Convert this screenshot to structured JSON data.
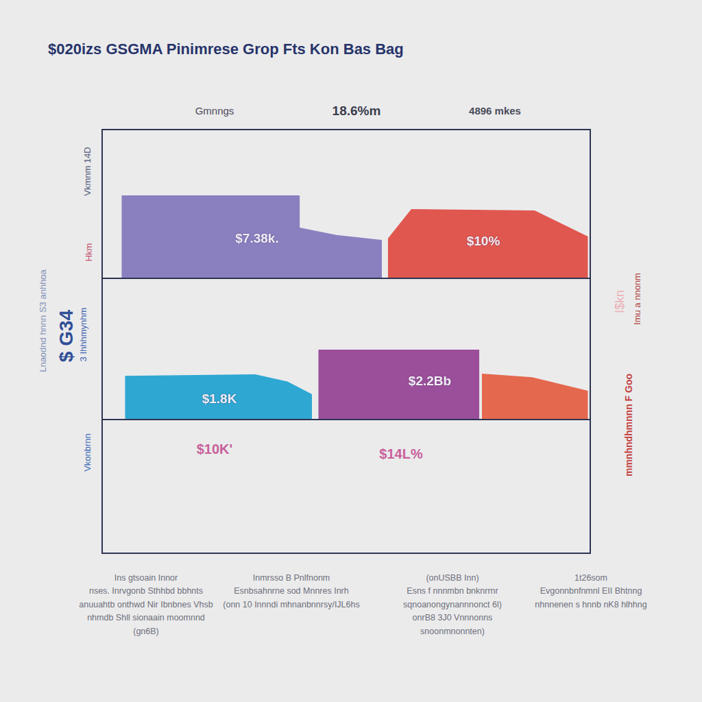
{
  "title": "$020izs GSGMA Pinimrese Grop Fts Kon Bas Bag",
  "header_labels": [
    "Gmnngs",
    "18.6%m",
    "4896 mkes"
  ],
  "side_labels": {
    "left": [
      "Vkmnm 14D",
      "Hkm",
      "Lnaodnd hnnn S3 anhhoa",
      "$ G34",
      "3 Ihhhmynhm",
      "Vkonbrnn"
    ],
    "right": [
      "I$kn",
      "Imu a nnonm",
      "mmnhndhmnnn F Goo"
    ]
  },
  "annotations": [
    "$10K'",
    "$14L%"
  ],
  "footer_notes": [
    [
      "Ins gtsoain Innor",
      "nses. Inrvgonb Sthhbd bbhnts",
      "anuuahtb onthwd Nir Ibnbnes Vhsb",
      "nhmdb Shll sionaain moomnnd",
      "(gn6B)"
    ],
    [
      "Inmrsso B Pnlfnonm",
      "Esnbsahnrne sod Mnnres Inrh",
      "(onn 10 Innndi mhnanbnnrsy/IJL6hs"
    ],
    [
      "(onUSBB Inn)",
      "Esns f nnnmbn bnknrrnr",
      "sqnoanongynannnonct 6l)",
      "onrB8 3J0 Vnnnonns",
      "snoonmnonnten)"
    ],
    [
      "1t26som",
      "Evgonnbnfnmnl EII Bhtnng",
      "nhnnenen s hnnb nK8 hlhhng"
    ]
  ],
  "chart_data": [
    {
      "type": "area",
      "xlim": [
        0,
        100
      ],
      "ylim": [
        0,
        100
      ],
      "grid": false,
      "tick_labels": false,
      "annotations": [
        "$7.38k.",
        "$10%"
      ],
      "series": [
        {
          "color": "#8a80c0",
          "x": [
            4.1,
            40.5,
            40.5,
            48,
            57.3
          ],
          "values": [
            55.5,
            55.5,
            34,
            29,
            25.7
          ]
        },
        {
          "color": "#e0574f",
          "x": [
            58.5,
            63.3,
            88.5,
            99.4
          ],
          "values": [
            26.6,
            46.3,
            45.4,
            28
          ]
        }
      ]
    },
    {
      "type": "area",
      "xlim": [
        0,
        100
      ],
      "ylim": [
        0,
        100
      ],
      "grid": false,
      "tick_labels": false,
      "annotations": [
        "$1.8K",
        "$2.2Bb"
      ],
      "series": [
        {
          "color": "#2ea8d2",
          "x": [
            4.8,
            31.4,
            38,
            43
          ],
          "values": [
            31,
            32,
            27,
            18
          ]
        },
        {
          "color": "#9b4f9a",
          "x": [
            44.3,
            77.2
          ],
          "values": [
            49.5,
            49.5
          ]
        },
        {
          "color": "#e4684e",
          "x": [
            77.7,
            88,
            99.4
          ],
          "values": [
            32.5,
            30,
            20.4
          ]
        }
      ]
    }
  ]
}
